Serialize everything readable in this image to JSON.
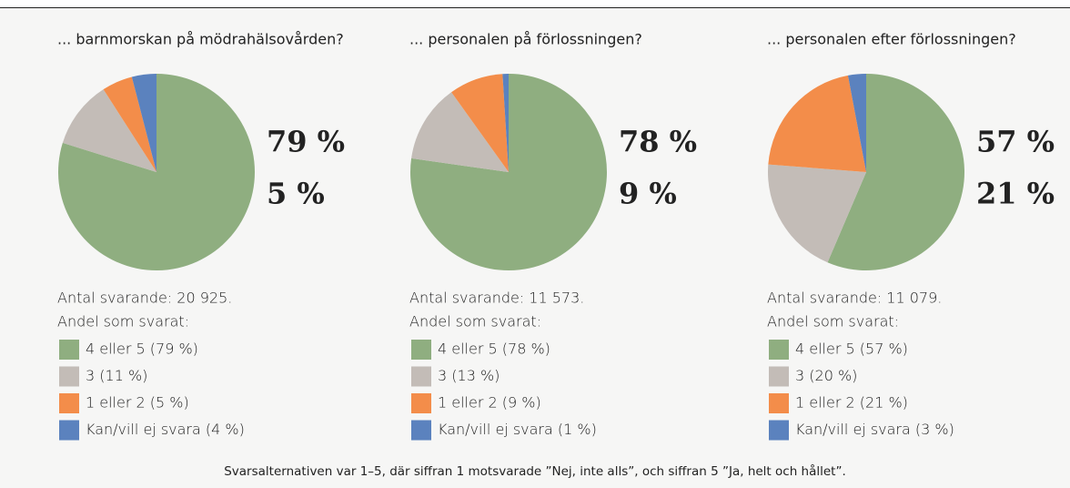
{
  "chart_data": [
    {
      "type": "pie",
      "title": "... barnmorskan på mödrahälsovården?",
      "respondents": "Antal svarande: 20 925.",
      "legend_title": "Andel som svarat:",
      "categories": [
        "4 eller 5 (79 %)",
        "3 (11 %)",
        "1 eller 2 (5 %)",
        "Kan/vill ej svara (4 %)"
      ],
      "values": [
        79,
        11,
        5,
        4
      ],
      "value_labels": [
        "79 %",
        null,
        "5 %",
        null
      ],
      "colors": [
        "#8fae80",
        "#c3bcb7",
        "#f38d4a",
        "#5b82be"
      ]
    },
    {
      "type": "pie",
      "title": "... personalen på förlossningen?",
      "respondents": "Antal svarande: 11 573.",
      "legend_title": "Andel som svarat:",
      "categories": [
        "4 eller 5 (78 %)",
        "3 (13 %)",
        "1 eller 2 (9 %)",
        "Kan/vill ej svara (1 %)"
      ],
      "values": [
        78,
        13,
        9,
        1
      ],
      "value_labels": [
        "78 %",
        null,
        "9 %",
        null
      ],
      "colors": [
        "#8fae80",
        "#c3bcb7",
        "#f38d4a",
        "#5b82be"
      ]
    },
    {
      "type": "pie",
      "title": "... personalen efter förlossningen?",
      "respondents": "Antal svarande: 11 079.",
      "legend_title": "Andel som svarat:",
      "categories": [
        "4 eller 5 (57 %)",
        "3 (20 %)",
        "1 eller 2 (21 %)",
        "Kan/vill ej svara (3 %)"
      ],
      "values": [
        57,
        20,
        21,
        3
      ],
      "value_labels": [
        "57 %",
        null,
        "21 %",
        null
      ],
      "colors": [
        "#8fae80",
        "#c3bcb7",
        "#f38d4a",
        "#5b82be"
      ]
    }
  ],
  "footnote": "Svarsalternativen var 1–5, där siffran 1 motsvarade ”Nej, inte alls”, och siffran 5 ”Ja, helt och hållet”."
}
